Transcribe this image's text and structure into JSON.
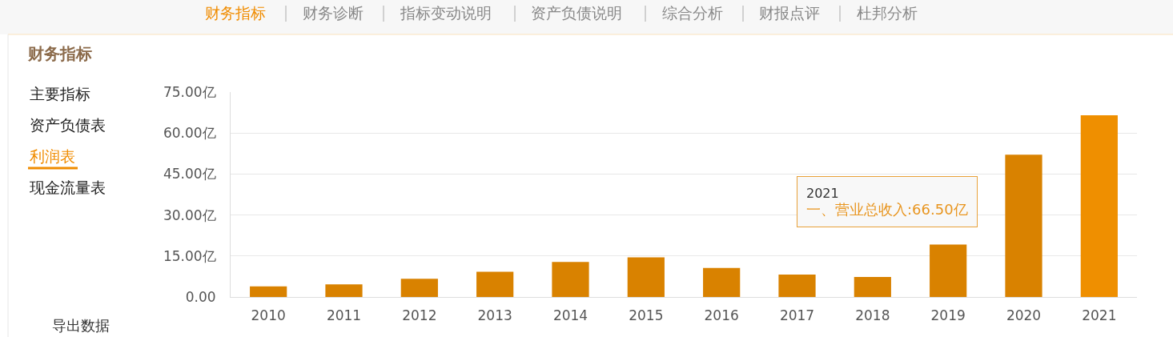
{
  "chart_data": {
    "type": "bar",
    "title": "财务指标",
    "categories": [
      "2010",
      "2011",
      "2012",
      "2013",
      "2014",
      "2015",
      "2016",
      "2017",
      "2018",
      "2019",
      "2020",
      "2021"
    ],
    "values": [
      3.9,
      4.6,
      6.7,
      9.2,
      12.8,
      14.5,
      10.6,
      8.2,
      7.3,
      19.2,
      52.1,
      66.5
    ],
    "colors": [
      "#d98200",
      "#d98200",
      "#d98200",
      "#d98200",
      "#d98200",
      "#d98200",
      "#d98200",
      "#d98200",
      "#d98200",
      "#d98200",
      "#d98200",
      "#ef8f00"
    ],
    "ylim": [
      0,
      75
    ],
    "yticks": [
      {
        "value": 0,
        "label": "0.00"
      },
      {
        "value": 15,
        "label": "15.00亿"
      },
      {
        "value": 30,
        "label": "30.00亿"
      },
      {
        "value": 45,
        "label": "45.00亿"
      },
      {
        "value": 60,
        "label": "60.00亿"
      },
      {
        "value": 75,
        "label": "75.00亿"
      }
    ],
    "grid": "y",
    "annotations": [
      "财务指标",
      "财务诊断",
      "指标变动说明",
      "资产负债说明",
      "综合分析",
      "财报点评",
      "杜邦分析",
      "主要指标",
      "资产负债表",
      "利润表",
      "现金流量表",
      "导出数据",
      "2021\n一、营业总收入:66.50亿"
    ]
  }
}
